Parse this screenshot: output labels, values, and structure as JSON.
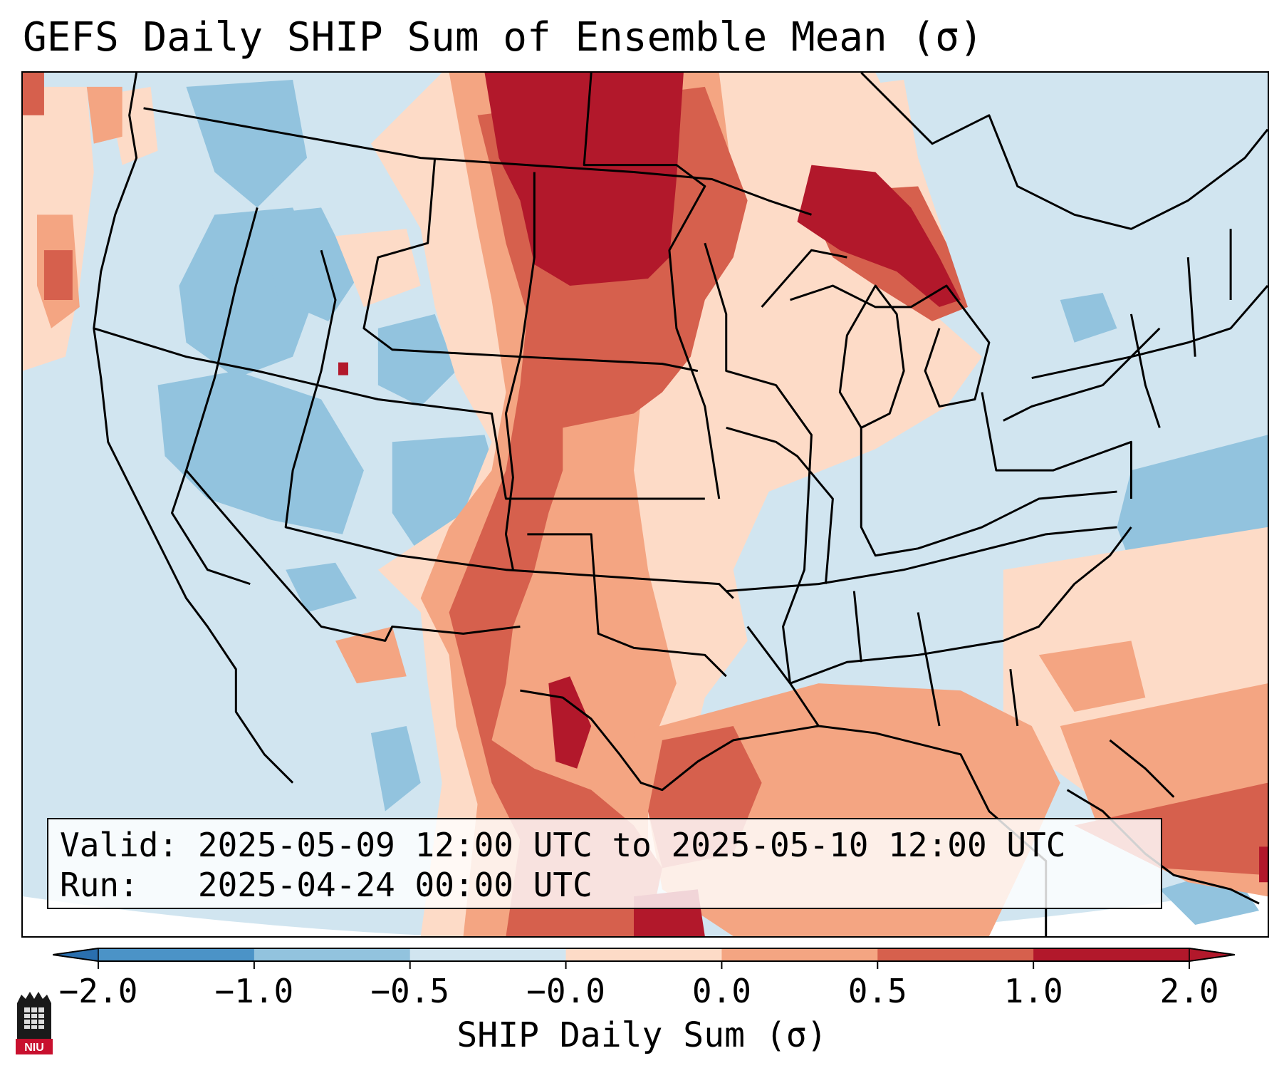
{
  "title": "GEFS Daily SHIP Sum of Ensemble Mean (σ)",
  "info": {
    "valid_label": "Valid:",
    "valid_value": "2025-05-09 12:00 UTC to 2025-05-10 12:00 UTC",
    "run_label": "Run:",
    "run_value": "2025-04-24 00:00 UTC"
  },
  "colorbar": {
    "label": "SHIP Daily Sum (σ)",
    "ticks": [
      "−2.0",
      "−1.0",
      "−0.5",
      "−0.0",
      "0.0",
      "0.5",
      "1.0",
      "2.0"
    ],
    "colors": [
      "#2a6fae",
      "#4b93c7",
      "#92c3de",
      "#d1e5f0",
      "#fddbc7",
      "#f4a582",
      "#d6604d",
      "#b2182b"
    ]
  },
  "logo": {
    "text": "NIU"
  },
  "legend_bins": [
    {
      "name": "< -1.0",
      "color": "#4b93c7"
    },
    {
      "name": "-1.0 to -0.5",
      "color": "#92c3de"
    },
    {
      "name": "-0.5 to 0.0",
      "color": "#d1e5f0"
    },
    {
      "name": "0.0 to 0.5",
      "color": "#fddbc7"
    },
    {
      "name": "0.5 to 1.0",
      "color": "#f4a582"
    },
    {
      "name": "1.0 to 2.0",
      "color": "#d6604d"
    },
    {
      "name": "> 2.0",
      "color": "#b2182b"
    }
  ]
}
